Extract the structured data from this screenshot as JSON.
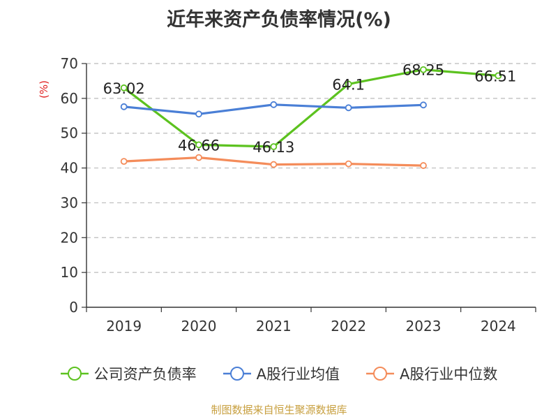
{
  "chart_data": {
    "type": "line",
    "title": "近年来资产负债率情况(%)",
    "ylabel": "(%)",
    "xlabel": "",
    "categories": [
      "2019",
      "2020",
      "2021",
      "2022",
      "2023",
      "2024"
    ],
    "ylim": [
      0,
      70
    ],
    "yticks": [
      0,
      10,
      20,
      30,
      40,
      50,
      60,
      70
    ],
    "grid": true,
    "legend_position": "bottom",
    "series": [
      {
        "name": "公司资产负债率",
        "color": "#5cc21f",
        "values": [
          63.02,
          46.66,
          46.13,
          64.1,
          68.25,
          66.51
        ],
        "show_labels": true
      },
      {
        "name": "A股行业均值",
        "color": "#4a7fd6",
        "values": [
          57.6,
          55.5,
          58.2,
          57.3,
          58.1,
          null
        ],
        "show_labels": false
      },
      {
        "name": "A股行业中位数",
        "color": "#f48c5a",
        "values": [
          41.9,
          43.0,
          41.0,
          41.2,
          40.7,
          null
        ],
        "show_labels": false
      }
    ],
    "data_labels": [
      "63.02",
      "46.66",
      "46.13",
      "64.1",
      "68.25",
      "66.51"
    ]
  },
  "ylabel_color": "#e02020",
  "source": "制图数据来自恒生聚源数据库"
}
